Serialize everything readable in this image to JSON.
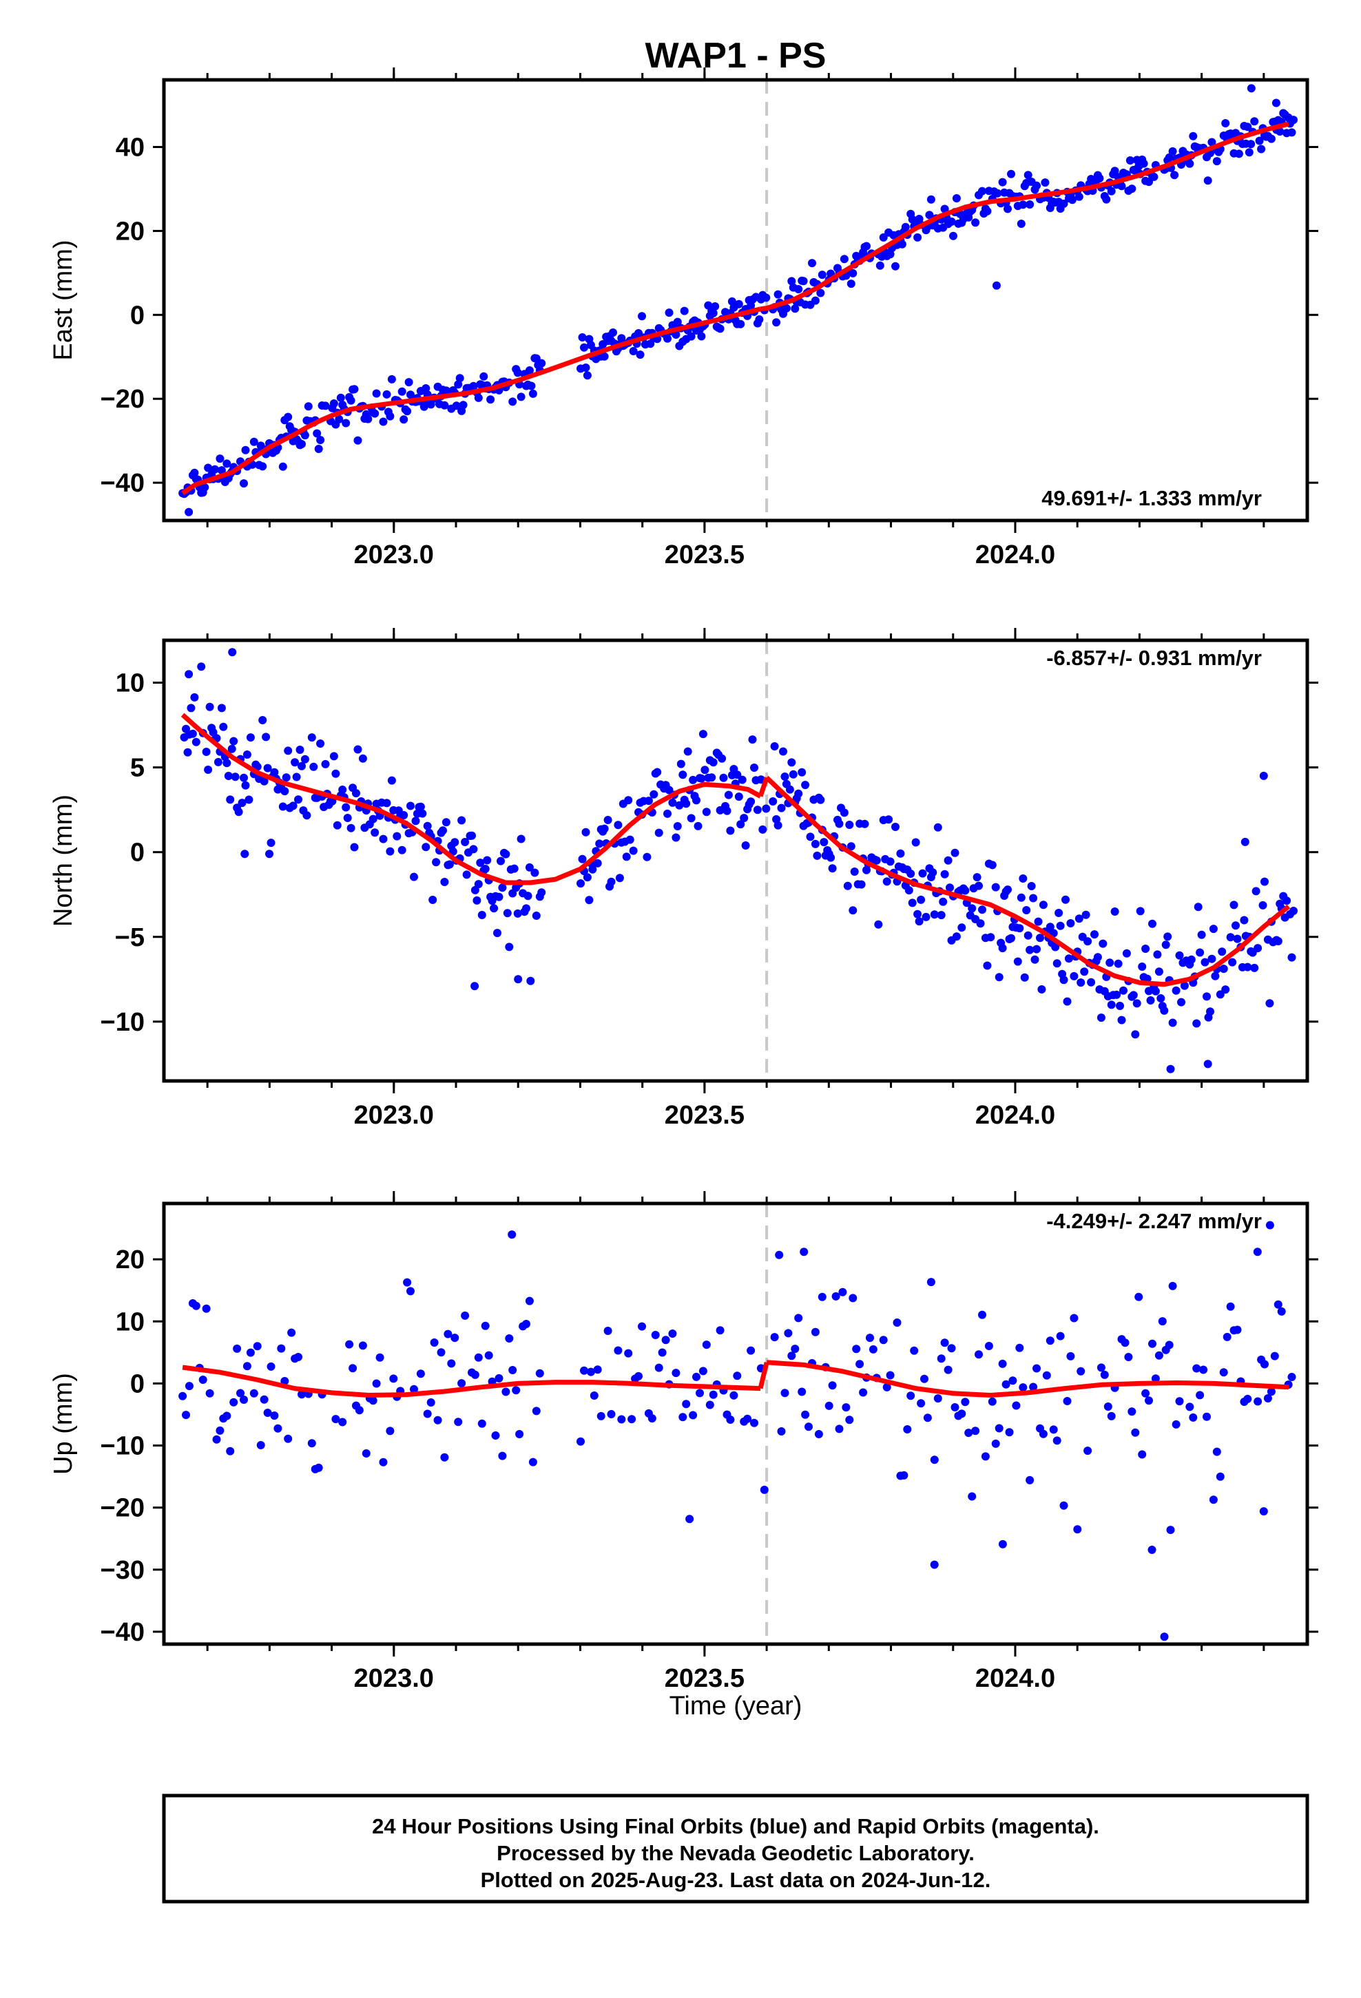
{
  "title": "WAP1 - PS",
  "xlabel": "Time (year)",
  "footer": {
    "line1": "24 Hour Positions Using Final Orbits (blue) and Rapid Orbits (magenta).",
    "line2": "Processed by the Nevada Geodetic Laboratory.",
    "line3": "Plotted on 2025-Aug-23. Last data on 2024-Jun-12."
  },
  "colors": {
    "points": "#0000ff",
    "fit": "#ff0000",
    "break_line": "#c8c8c8",
    "frame": "#000000"
  },
  "chart_data": [
    {
      "type": "scatter",
      "ylabel": "East (mm)",
      "rate_label": "49.691+/- 1.333 mm/yr",
      "xlim": [
        2022.63,
        2024.47
      ],
      "ylim": [
        -49,
        56
      ],
      "xticks": [
        2023.0,
        2023.5,
        2024.0
      ],
      "xtick_labels": [
        "2023.0",
        "2023.5",
        "2024.0"
      ],
      "yticks": [
        -40,
        -20,
        0,
        20,
        40
      ],
      "ytick_labels": [
        "−40",
        "−20",
        "0",
        "20",
        "40"
      ],
      "break_x": 2023.6,
      "grid": false,
      "series": [
        {
          "x": [
            2022.66,
            2022.68,
            2022.7,
            2022.72,
            2022.74,
            2022.76,
            2022.78,
            2022.8,
            2022.82,
            2022.84,
            2022.86,
            2022.88,
            2022.9,
            2022.93,
            2022.96,
            2023.0,
            2023.04,
            2023.08,
            2023.12,
            2023.16,
            2023.2,
            2023.24,
            2023.28,
            2023.32,
            2023.36,
            2023.4,
            2023.44,
            2023.48,
            2023.52,
            2023.56,
            2023.59
          ],
          "y": [
            -42.5,
            -40.5,
            -39.5,
            -38.5,
            -37.5,
            -35.5,
            -33.5,
            -31.5,
            -30.0,
            -28.5,
            -26.8,
            -25.3,
            -24.0,
            -22.5,
            -21.8,
            -21.0,
            -20.2,
            -19.4,
            -18.6,
            -17.4,
            -15.6,
            -13.6,
            -11.5,
            -9.4,
            -7.4,
            -5.6,
            -4.0,
            -2.6,
            -1.2,
            0.3,
            1.4
          ]
        },
        {
          "x": [
            2023.6,
            2023.64,
            2023.68,
            2023.72,
            2023.76,
            2023.8,
            2023.84,
            2023.88,
            2023.92,
            2023.96,
            2024.0,
            2024.04,
            2024.08,
            2024.12,
            2024.16,
            2024.2,
            2024.24,
            2024.28,
            2024.32,
            2024.36,
            2024.4,
            2024.44
          ],
          "y": [
            1.6,
            3.4,
            6.3,
            10.0,
            13.5,
            17.0,
            20.6,
            23.6,
            25.7,
            27.0,
            27.6,
            28.5,
            29.3,
            30.3,
            31.6,
            33.3,
            35.4,
            37.7,
            40.0,
            42.2,
            44.0,
            45.5
          ]
        }
      ],
      "scatter_sampling": {
        "x_start": 2022.66,
        "x_end": 2024.45,
        "spacing_days": 1,
        "gaps": [
          [
            2023.24,
            2023.3
          ],
          [
            2023.6,
            2023.61
          ]
        ],
        "noise_sd": 2.2,
        "outliers": [
          [
            2022.67,
            -47.0
          ],
          [
            2023.97,
            7.0
          ],
          [
            2024.38,
            54.0
          ],
          [
            2024.42,
            50.5
          ],
          [
            2024.31,
            32.0
          ]
        ]
      }
    },
    {
      "type": "scatter",
      "ylabel": "North (mm)",
      "rate_label": "-6.857+/- 0.931 mm/yr",
      "xlim": [
        2022.63,
        2024.47
      ],
      "ylim": [
        -13.5,
        12.5
      ],
      "xticks": [
        2023.0,
        2023.5,
        2024.0
      ],
      "xtick_labels": [
        "2023.0",
        "2023.5",
        "2024.0"
      ],
      "yticks": [
        -10,
        -5,
        0,
        5,
        10
      ],
      "ytick_labels": [
        "−10",
        "−5",
        "0",
        "5",
        "10"
      ],
      "break_x": 2023.6,
      "grid": false,
      "series": [
        {
          "x": [
            2022.66,
            2022.7,
            2022.74,
            2022.78,
            2022.82,
            2022.86,
            2022.9,
            2022.94,
            2022.98,
            2023.02,
            2023.06,
            2023.1,
            2023.14,
            2023.18,
            2023.22,
            2023.26,
            2023.3,
            2023.34,
            2023.38,
            2023.42,
            2023.46,
            2023.5,
            2023.54,
            2023.57,
            2023.59
          ],
          "y": [
            8.1,
            6.8,
            5.6,
            4.7,
            4.1,
            3.7,
            3.3,
            2.9,
            2.4,
            1.7,
            0.7,
            -0.5,
            -1.3,
            -1.8,
            -1.8,
            -1.6,
            -1.0,
            0.2,
            1.6,
            2.8,
            3.6,
            4.0,
            3.9,
            3.7,
            3.3
          ]
        },
        {
          "x": [
            2023.6,
            2023.64,
            2023.68,
            2023.72,
            2023.76,
            2023.8,
            2023.84,
            2023.88,
            2023.92,
            2023.96,
            2024.0,
            2024.04,
            2024.08,
            2024.12,
            2024.16,
            2024.2,
            2024.24,
            2024.28,
            2024.32,
            2024.36,
            2024.4,
            2024.44
          ],
          "y": [
            4.4,
            3.0,
            1.6,
            0.3,
            -0.6,
            -1.3,
            -1.9,
            -2.3,
            -2.7,
            -3.1,
            -3.8,
            -4.6,
            -5.6,
            -6.6,
            -7.3,
            -7.7,
            -7.8,
            -7.5,
            -6.8,
            -5.7,
            -4.4,
            -3.2
          ]
        }
      ],
      "scatter_sampling": {
        "x_start": 2022.66,
        "x_end": 2024.45,
        "spacing_days": 1,
        "gaps": [
          [
            2023.24,
            2023.3
          ],
          [
            2023.6,
            2023.61
          ]
        ],
        "noise_sd": 1.5,
        "outliers": [
          [
            2022.67,
            10.5
          ],
          [
            2022.74,
            11.8
          ],
          [
            2022.76,
            -0.1
          ],
          [
            2023.13,
            -7.9
          ],
          [
            2023.2,
            -7.5
          ],
          [
            2023.22,
            -7.6
          ],
          [
            2024.25,
            -12.8
          ],
          [
            2024.31,
            -12.5
          ],
          [
            2024.4,
            4.5
          ],
          [
            2024.37,
            0.6
          ]
        ]
      }
    },
    {
      "type": "scatter",
      "ylabel": "Up (mm)",
      "rate_label": "-4.249+/- 2.247 mm/yr",
      "xlim": [
        2022.63,
        2024.47
      ],
      "ylim": [
        -42,
        29
      ],
      "xticks": [
        2023.0,
        2023.5,
        2024.0
      ],
      "xtick_labels": [
        "2023.0",
        "2023.5",
        "2024.0"
      ],
      "yticks": [
        -40,
        -30,
        -20,
        -10,
        0,
        10,
        20
      ],
      "ytick_labels": [
        "−40",
        "−30",
        "−20",
        "−10",
        "0",
        "10",
        "20"
      ],
      "break_x": 2023.6,
      "grid": false,
      "series": [
        {
          "x": [
            2022.66,
            2022.72,
            2022.78,
            2022.84,
            2022.9,
            2022.96,
            2023.02,
            2023.08,
            2023.14,
            2023.2,
            2023.26,
            2023.32,
            2023.38,
            2023.44,
            2023.5,
            2023.56,
            2023.59
          ],
          "y": [
            2.6,
            1.8,
            0.6,
            -0.8,
            -1.5,
            -1.9,
            -1.8,
            -1.3,
            -0.6,
            0.0,
            0.2,
            0.2,
            0.0,
            -0.3,
            -0.5,
            -0.7,
            -0.8
          ]
        },
        {
          "x": [
            2023.6,
            2023.66,
            2023.72,
            2023.78,
            2023.84,
            2023.9,
            2023.96,
            2024.02,
            2024.08,
            2024.14,
            2024.2,
            2024.26,
            2024.32,
            2024.38,
            2024.44
          ],
          "y": [
            3.4,
            3.0,
            2.0,
            0.6,
            -0.8,
            -1.6,
            -1.9,
            -1.5,
            -0.8,
            -0.2,
            0.0,
            0.1,
            0.0,
            -0.3,
            -0.6
          ]
        }
      ],
      "scatter_sampling": {
        "x_start": 2022.66,
        "x_end": 2024.45,
        "spacing_days": 2,
        "gaps": [
          [
            2023.24,
            2023.3
          ],
          [
            2023.6,
            2023.61
          ]
        ],
        "noise_sd": 7.5,
        "outliers": [
          [
            2023.19,
            24.0
          ],
          [
            2023.62,
            20.7
          ],
          [
            2023.66,
            21.2
          ],
          [
            2024.22,
            -26.8
          ],
          [
            2024.24,
            -40.8
          ],
          [
            2024.25,
            -23.6
          ],
          [
            2024.4,
            -20.6
          ],
          [
            2023.87,
            -29.2
          ],
          [
            2023.98,
            -25.9
          ],
          [
            2024.39,
            21.2
          ],
          [
            2024.41,
            25.5
          ]
        ]
      }
    }
  ]
}
